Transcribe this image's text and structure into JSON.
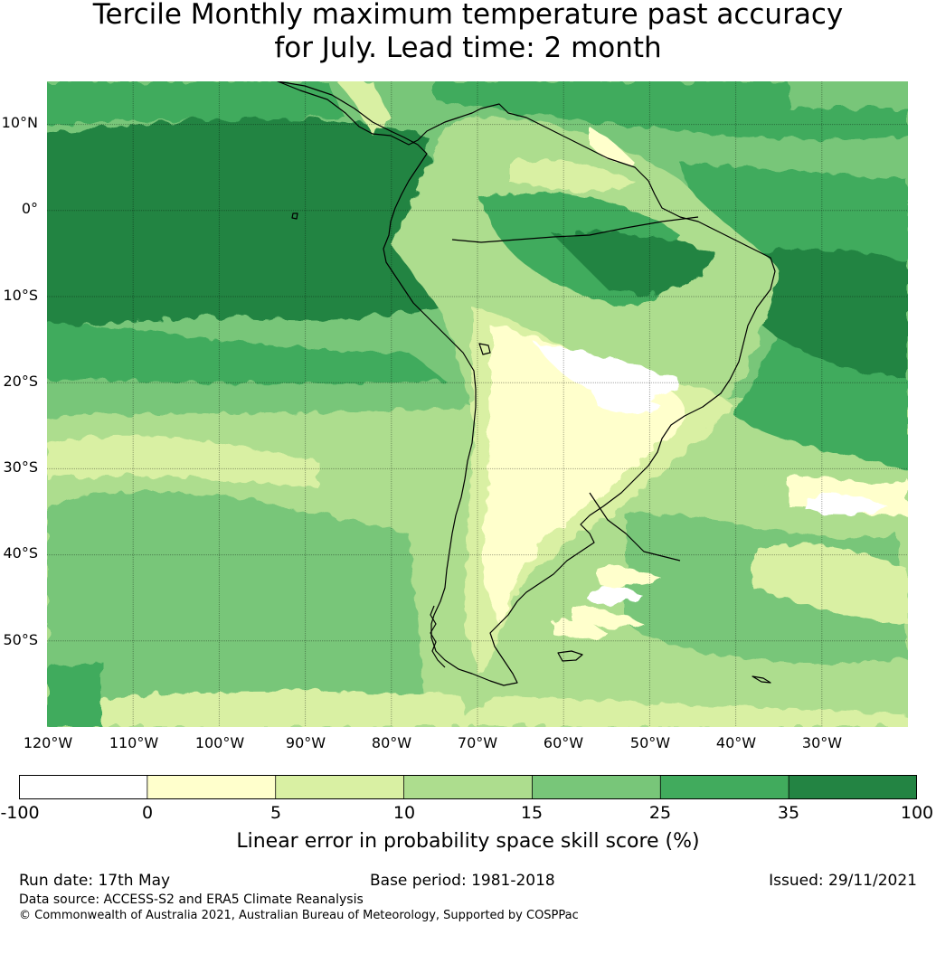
{
  "title": {
    "line1": "Tercile Monthly maximum temperature past accuracy",
    "line2": "for July. Lead time: 2 month"
  },
  "map": {
    "region": "South America",
    "lat_range": [
      -60,
      15
    ],
    "lon_range": [
      -120,
      -20
    ],
    "lat_ticks": [
      {
        "value": 10,
        "label": "10°N"
      },
      {
        "value": 0,
        "label": "0°"
      },
      {
        "value": -10,
        "label": "10°S"
      },
      {
        "value": -20,
        "label": "20°S"
      },
      {
        "value": -30,
        "label": "30°S"
      },
      {
        "value": -40,
        "label": "40°S"
      },
      {
        "value": -50,
        "label": "50°S"
      }
    ],
    "lon_ticks": [
      {
        "value": -120,
        "label": "120°W"
      },
      {
        "value": -110,
        "label": "110°W"
      },
      {
        "value": -100,
        "label": "100°W"
      },
      {
        "value": -90,
        "label": "90°W"
      },
      {
        "value": -80,
        "label": "80°W"
      },
      {
        "value": -70,
        "label": "70°W"
      },
      {
        "value": -60,
        "label": "60°W"
      },
      {
        "value": -50,
        "label": "50°W"
      },
      {
        "value": -40,
        "label": "40°W"
      },
      {
        "value": -30,
        "label": "30°W"
      }
    ],
    "gridlines": true
  },
  "colorbar": {
    "boundaries": [
      "-100",
      "0",
      "5",
      "10",
      "15",
      "25",
      "35",
      "100"
    ],
    "colors": [
      "#ffffff",
      "#ffffcc",
      "#d9f0a3",
      "#addd8e",
      "#78c679",
      "#41ab5d",
      "#238443"
    ],
    "label": "Linear error in probability space skill score (%)"
  },
  "footer": {
    "run_date": "Run date: 17th May",
    "base_period": "Base period: 1981-2018",
    "issued": "Issued: 29/11/2021",
    "data_source": "Data source: ACCESS-S2 and ERA5 Climate Reanalysis",
    "copyright": "© Commonwealth of Australia 2021, Australian Bureau of Meteorology, Supported by COSPPac"
  }
}
